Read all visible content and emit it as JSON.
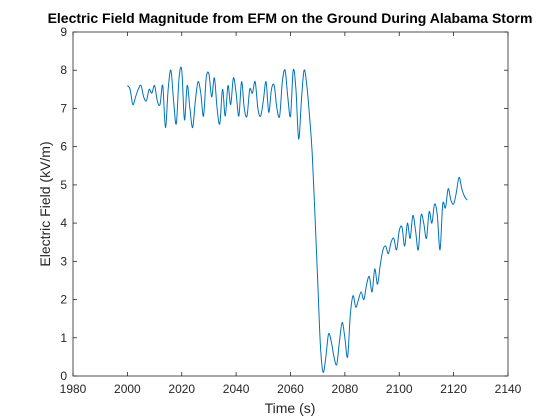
{
  "chart_data": {
    "type": "line",
    "title": "Electric Field Magnitude from EFM on the Ground During Alabama Storm",
    "xlabel": "Time (s)",
    "ylabel": "Electric Field (kV/m)",
    "xlim": [
      1980,
      2140
    ],
    "ylim": [
      0,
      9
    ],
    "xticks": [
      1980,
      2000,
      2020,
      2040,
      2060,
      2080,
      2100,
      2120,
      2140
    ],
    "yticks": [
      0,
      1,
      2,
      3,
      4,
      5,
      6,
      7,
      8,
      9
    ],
    "grid": false,
    "legend": "none",
    "line_color": "#0072BD",
    "series": [
      {
        "x": [
          2000,
          2001,
          2002,
          2003,
          2004,
          2005,
          2006,
          2007,
          2008,
          2009,
          2010,
          2011,
          2012,
          2013,
          2014,
          2015,
          2016,
          2017,
          2018,
          2019,
          2020,
          2021,
          2022,
          2023,
          2024,
          2025,
          2026,
          2027,
          2028,
          2029,
          2030,
          2031,
          2032,
          2033,
          2034,
          2035,
          2036,
          2037,
          2038,
          2039,
          2040,
          2041,
          2042,
          2043,
          2044,
          2045,
          2046,
          2047,
          2048,
          2049,
          2050,
          2051,
          2052,
          2053,
          2054,
          2055,
          2056,
          2057,
          2058,
          2059,
          2060,
          2061,
          2062,
          2063,
          2064,
          2065,
          2066,
          2067,
          2068,
          2069,
          2070,
          2071,
          2072,
          2073,
          2074,
          2075,
          2076,
          2077,
          2078,
          2079,
          2080,
          2081,
          2082,
          2083,
          2084,
          2085,
          2086,
          2087,
          2088,
          2089,
          2090,
          2091,
          2092,
          2093,
          2094,
          2095,
          2096,
          2097,
          2098,
          2099,
          2100,
          2101,
          2102,
          2103,
          2104,
          2105,
          2106,
          2107,
          2108,
          2109,
          2110,
          2111,
          2112,
          2113,
          2114,
          2115,
          2116,
          2117,
          2118,
          2119,
          2120,
          2121,
          2122,
          2123,
          2124,
          2125
        ],
        "y": [
          7.6,
          7.5,
          7.1,
          7.3,
          7.5,
          7.6,
          7.3,
          7.2,
          7.5,
          7.4,
          7.6,
          7.2,
          7.1,
          7.6,
          6.5,
          7.5,
          8.0,
          7.2,
          6.6,
          7.8,
          8.0,
          6.7,
          7.6,
          7.0,
          6.5,
          7.2,
          7.7,
          7.4,
          6.8,
          7.8,
          7.9,
          7.3,
          7.8,
          7.0,
          6.6,
          7.5,
          6.8,
          7.6,
          7.1,
          7.8,
          7.4,
          6.8,
          7.7,
          7.0,
          6.8,
          7.5,
          7.4,
          7.7,
          7.0,
          6.8,
          7.2,
          7.7,
          6.9,
          7.5,
          7.6,
          7.0,
          6.8,
          7.7,
          8.0,
          7.3,
          6.8,
          8.0,
          7.5,
          6.2,
          7.2,
          8.0,
          7.6,
          6.8,
          5.8,
          4.2,
          2.5,
          0.8,
          0.1,
          0.5,
          1.1,
          0.9,
          0.5,
          0.3,
          0.9,
          1.4,
          1.0,
          0.5,
          1.6,
          2.1,
          1.8,
          2.0,
          2.2,
          2.0,
          2.4,
          2.6,
          2.2,
          2.8,
          2.4,
          2.9,
          3.3,
          3.4,
          3.2,
          3.5,
          3.6,
          3.3,
          3.8,
          3.9,
          3.4,
          4.0,
          3.6,
          4.2,
          3.8,
          3.3,
          4.2,
          4.0,
          3.6,
          4.3,
          4.0,
          4.5,
          4.2,
          3.3,
          4.5,
          4.4,
          4.9,
          4.6,
          4.5,
          4.8,
          5.2,
          4.9,
          4.7,
          4.6
        ]
      }
    ]
  }
}
